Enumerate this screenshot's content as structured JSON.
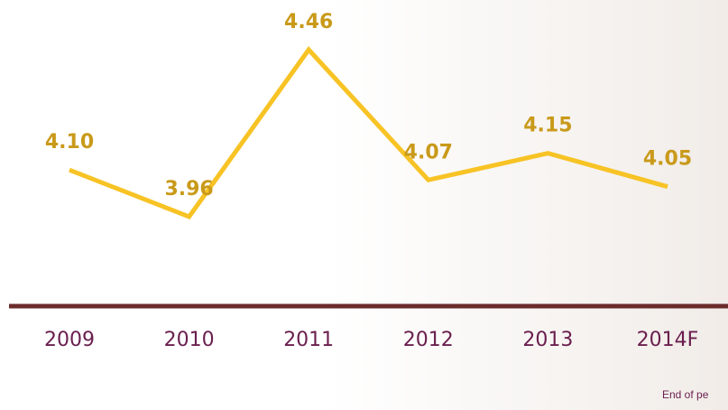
{
  "chart_data": {
    "type": "line",
    "categories": [
      "2009",
      "2010",
      "2011",
      "2012",
      "2013",
      "2014F"
    ],
    "values": [
      4.1,
      3.96,
      4.46,
      4.07,
      4.15,
      4.05
    ],
    "value_labels": [
      "4.10",
      "3.96",
      "4.46",
      "4.07",
      "4.15",
      "4.05"
    ],
    "color": "#f7c325",
    "ylim": [
      3.7,
      4.6
    ],
    "footnote": "End of pe"
  }
}
